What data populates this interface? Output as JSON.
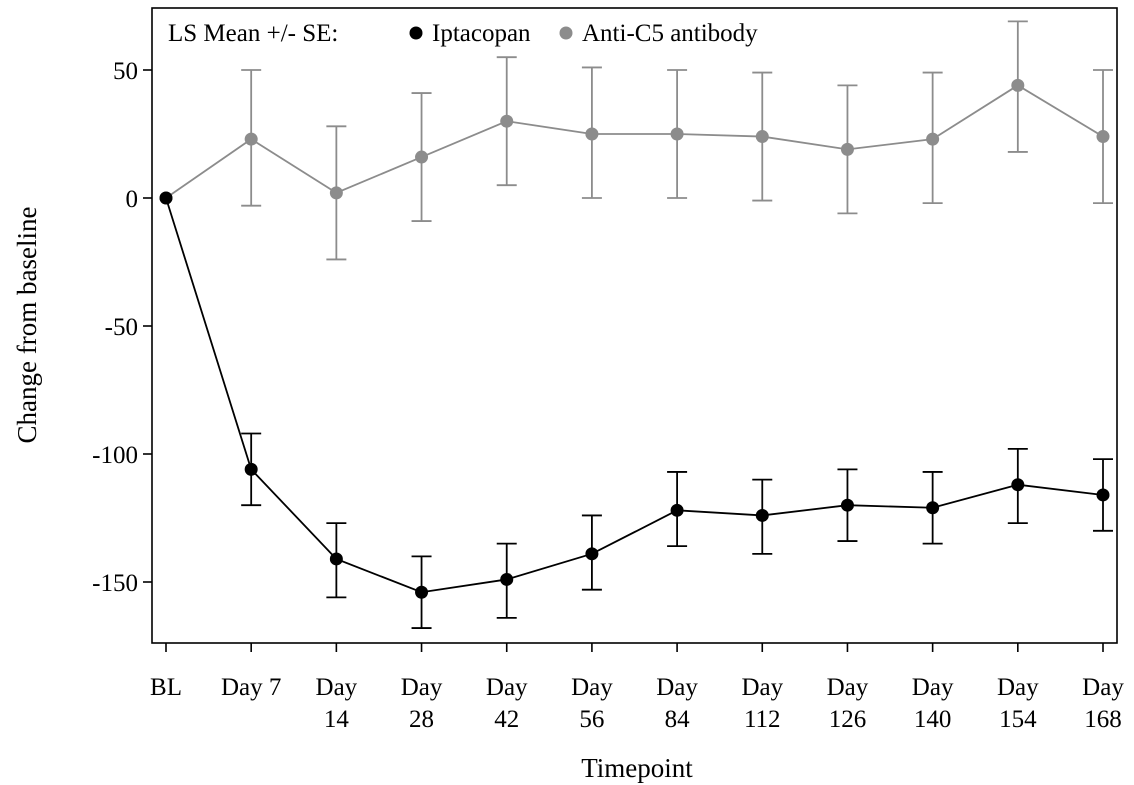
{
  "chart_data": {
    "type": "line",
    "title": "",
    "xlabel": "Timepoint",
    "ylabel": "Change from baseline",
    "ylim": [
      -175,
      75
    ],
    "yticks": [
      50,
      0,
      -50,
      -100,
      -150
    ],
    "categories": [
      [
        "BL"
      ],
      [
        "Day 7"
      ],
      [
        "Day",
        "14"
      ],
      [
        "Day",
        "28"
      ],
      [
        "Day",
        "42"
      ],
      [
        "Day",
        "56"
      ],
      [
        "Day",
        "84"
      ],
      [
        "Day",
        "112"
      ],
      [
        "Day",
        "126"
      ],
      [
        "Day",
        "140"
      ],
      [
        "Day",
        "154"
      ],
      [
        "Day",
        "168"
      ]
    ],
    "legend": {
      "title": "LS Mean +/- SE:",
      "placement": "top-left"
    },
    "grid": false,
    "series": [
      {
        "name": "Iptacopan",
        "color": "#000000",
        "values": [
          0,
          -106,
          -141,
          -154,
          -149,
          -139,
          -122,
          -124,
          -120,
          -121,
          -112,
          -116
        ],
        "lower": [
          0,
          -120,
          -156,
          -168,
          -164,
          -153,
          -136,
          -139,
          -134,
          -135,
          -127,
          -130
        ],
        "upper": [
          0,
          -92,
          -127,
          -140,
          -135,
          -124,
          -107,
          -110,
          -106,
          -107,
          -98,
          -102
        ]
      },
      {
        "name": "Anti-C5 antibody",
        "color": "#8c8c8c",
        "values": [
          0,
          23,
          2,
          16,
          30,
          25,
          25,
          24,
          19,
          23,
          44,
          24
        ],
        "lower": [
          0,
          -3,
          -24,
          -9,
          5,
          0,
          0,
          -1,
          -6,
          -2,
          18,
          -2
        ],
        "upper": [
          0,
          50,
          28,
          41,
          55,
          51,
          50,
          49,
          44,
          49,
          69,
          50
        ]
      }
    ]
  }
}
